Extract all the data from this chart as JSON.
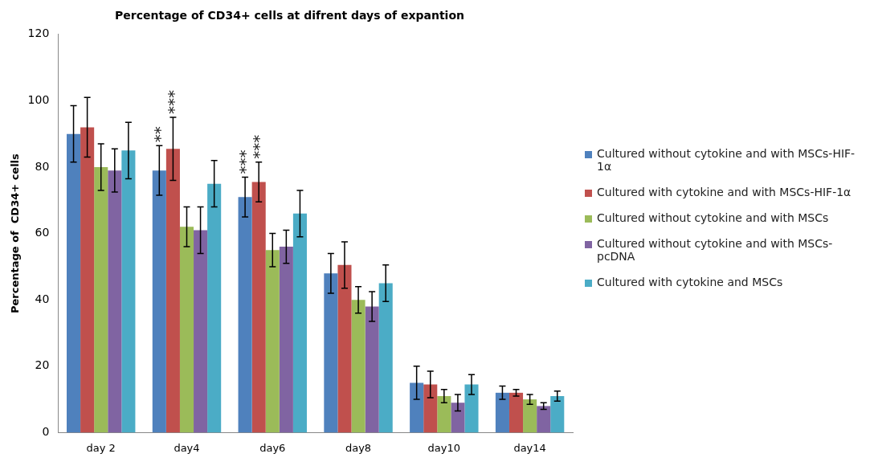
{
  "chart_data": {
    "type": "bar",
    "title": "Percentage of CD34+ cells at difrent days of expantion",
    "ylabel": "Percentage of  CD34+ cells",
    "categories": [
      "day 2",
      "day4",
      "day6",
      "day8",
      "day10",
      "day14"
    ],
    "series": [
      {
        "name": "Cultured without  cytokine and with MSCs-HIF-1α",
        "color": "#4f81bd",
        "values": [
          90,
          79,
          71,
          48,
          15,
          12
        ],
        "errors": [
          8.5,
          7.5,
          6,
          6,
          5,
          2
        ]
      },
      {
        "name": "Cultured with cytokine and with MSCs-HIF-1α",
        "color": "#c0504d",
        "values": [
          92,
          85.5,
          75.5,
          50.5,
          14.5,
          12
        ],
        "errors": [
          9,
          9.5,
          6,
          7,
          4,
          1
        ]
      },
      {
        "name": "Cultured without  cytokine and with  MSCs",
        "color": "#9bbb59",
        "values": [
          80,
          62,
          55,
          40,
          11,
          10
        ],
        "errors": [
          7,
          6,
          5,
          4,
          2,
          1.5
        ]
      },
      {
        "name": "Cultured without  cytokine and with MSCs-pcDNA",
        "color": "#8064a2",
        "values": [
          79,
          61,
          56,
          38,
          9,
          8
        ],
        "errors": [
          6.5,
          7,
          5,
          4.5,
          2.5,
          1
        ]
      },
      {
        "name": "Cultured with cytokine and MSCs",
        "color": "#4bacc6",
        "values": [
          85,
          75,
          66,
          45,
          14.5,
          11
        ],
        "errors": [
          8.5,
          7,
          7,
          5.5,
          3,
          1.5
        ]
      }
    ],
    "ylim": [
      0,
      120
    ],
    "yticks": [
      0,
      20,
      40,
      60,
      80,
      100,
      120
    ],
    "grid": false,
    "legend": "right",
    "annotations": [
      "**",
      "***",
      "***",
      "***"
    ]
  }
}
